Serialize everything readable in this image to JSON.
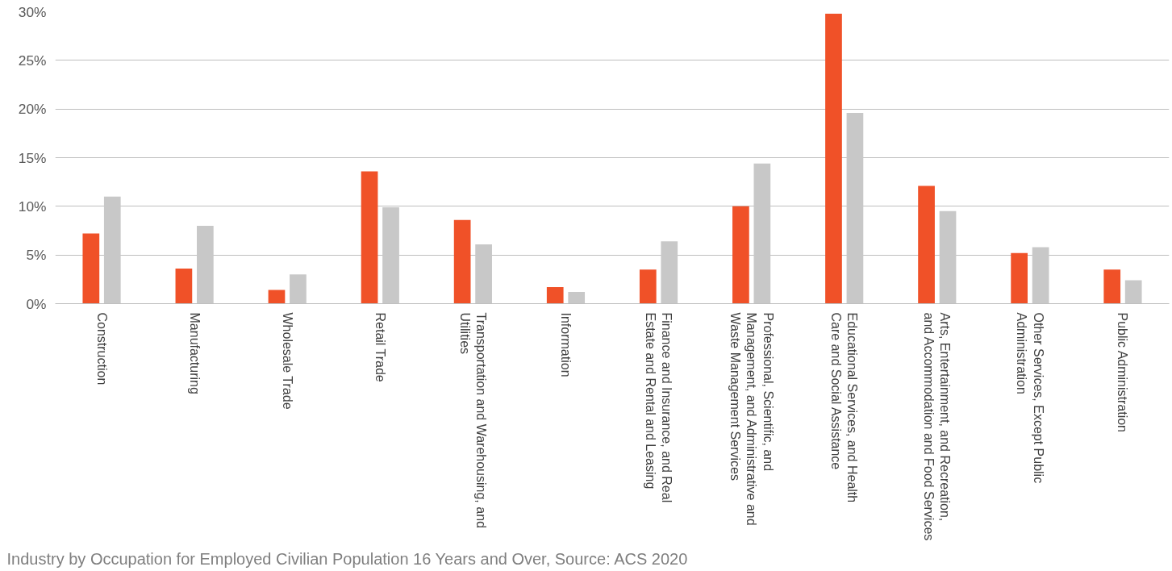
{
  "chart_data": {
    "type": "bar",
    "categories": [
      "Construction",
      "Manufacturing",
      "Wholesale Trade",
      "Retail Trade",
      "Transportation and Warehousing, and Utilities",
      "Information",
      "Finance and Insurance, and Real Estate and Rental and Leasing",
      "Professional, Scientific, and Management, and Administrative and Waste Management Services",
      "Educational Services, and Health Care and Social Assistance",
      "Arts, Entertainment, and Recreation, and Accommodation and Food Services",
      "Other Services, Except Public Administration",
      "Public Administration"
    ],
    "series": [
      {
        "color": "#f05128",
        "values": [
          7.2,
          3.6,
          1.4,
          13.6,
          8.6,
          1.7,
          3.5,
          10.0,
          29.8,
          12.1,
          5.2,
          3.5
        ]
      },
      {
        "color": "#c8c8c8",
        "values": [
          11.0,
          8.0,
          3.0,
          9.9,
          6.1,
          1.2,
          6.4,
          14.4,
          19.6,
          9.5,
          5.8,
          2.4
        ]
      }
    ],
    "ylim": [
      0,
      30
    ],
    "yticks": [
      {
        "value": 0,
        "label": "0%"
      },
      {
        "value": 5,
        "label": "5%"
      },
      {
        "value": 10,
        "label": "10%"
      },
      {
        "value": 15,
        "label": "15%"
      },
      {
        "value": 20,
        "label": "20%"
      },
      {
        "value": 25,
        "label": "25%"
      },
      {
        "value": 30,
        "label": "30%"
      }
    ],
    "grid": "y",
    "annotations": [
      "Industry by Occupation for Employed Civilian Population 16 Years and Over, Source: ACS 2020"
    ]
  }
}
